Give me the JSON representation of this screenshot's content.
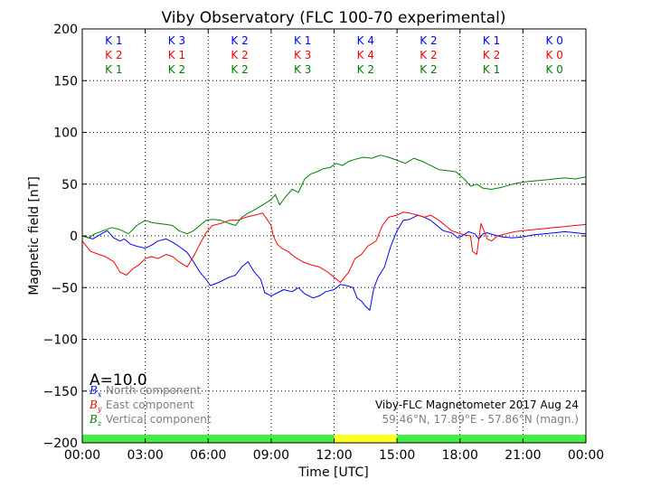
{
  "chart_data": {
    "type": "line",
    "title": "Viby Observatory (FLC 100-70 experimental)",
    "xlabel": "Time [UTC]",
    "ylabel": "Magnetic field [nT]",
    "x_ticks": [
      "00:00",
      "03:00",
      "06:00",
      "09:00",
      "12:00",
      "15:00",
      "18:00",
      "21:00",
      "00:00"
    ],
    "y_ticks": [
      "200",
      "150",
      "100",
      "50",
      "0",
      "−50",
      "−100",
      "−150",
      "−200"
    ],
    "xlim_hours": [
      0,
      24
    ],
    "ylim": [
      -200,
      200
    ],
    "grid": true,
    "k_index_rows": [
      {
        "color": "#0000ff",
        "values": [
          "K 1",
          "K 3",
          "K 2",
          "K 1",
          "K 4",
          "K 2",
          "K 1",
          "K 0"
        ]
      },
      {
        "color": "#ff0000",
        "values": [
          "K 2",
          "K 1",
          "K 2",
          "K 3",
          "K 4",
          "K 2",
          "K 2",
          "K 0"
        ]
      },
      {
        "color": "#008000",
        "values": [
          "K 1",
          "K 2",
          "K 2",
          "K 3",
          "K 2",
          "K 2",
          "K 1",
          "K 0"
        ]
      }
    ],
    "status_bar": [
      {
        "from_hour": 0,
        "to_hour": 12,
        "color": "#44ee44"
      },
      {
        "from_hour": 12,
        "to_hour": 15,
        "color": "#ffff22"
      },
      {
        "from_hour": 15,
        "to_hour": 24,
        "color": "#44ee44"
      }
    ],
    "a_index": "A=10.0",
    "legend": [
      {
        "symbol": "B",
        "subscript": "x",
        "label": "North component",
        "color": "#0000ff"
      },
      {
        "symbol": "B",
        "subscript": "y",
        "label": "East component",
        "color": "#ff0000"
      },
      {
        "symbol": "B",
        "subscript": "z",
        "label": "Vertical component",
        "color": "#008000"
      }
    ],
    "info_line1": "Viby-FLC Magnetometer 2017 Aug 24",
    "info_line2": "59.46°N, 17.89°E - 57.86°N (magn.)",
    "series": [
      {
        "name": "North component",
        "color": "#0000ff",
        "hours": [
          0,
          0.5,
          1.0,
          1.2,
          1.5,
          1.8,
          2.0,
          2.3,
          2.6,
          3.0,
          3.3,
          3.6,
          4.0,
          4.3,
          4.6,
          5.0,
          5.3,
          5.6,
          5.9,
          6.1,
          6.5,
          7.0,
          7.3,
          7.6,
          7.9,
          8.2,
          8.5,
          8.7,
          9.0,
          9.3,
          9.6,
          10.0,
          10.3,
          10.6,
          11.0,
          11.3,
          11.6,
          12.0,
          12.3,
          12.6,
          12.9,
          13.1,
          13.3,
          13.5,
          13.7,
          13.9,
          14.1,
          14.4,
          14.7,
          15.0,
          15.3,
          15.6,
          16.0,
          16.3,
          16.6,
          16.9,
          17.2,
          17.6,
          17.9,
          18.1,
          18.4,
          18.7,
          18.9,
          19.1,
          19.3,
          19.6,
          20.0,
          20.5,
          21.0,
          21.5,
          22.0,
          22.5,
          23.0,
          23.5,
          24.0
        ],
        "values": [
          0,
          -3,
          3,
          5,
          -2,
          -5,
          -3,
          -8,
          -10,
          -12,
          -9,
          -5,
          -3,
          -6,
          -10,
          -16,
          -25,
          -35,
          -42,
          -48,
          -45,
          -40,
          -38,
          -30,
          -25,
          -35,
          -42,
          -55,
          -58,
          -55,
          -52,
          -54,
          -50,
          -56,
          -60,
          -58,
          -54,
          -52,
          -47,
          -48,
          -50,
          -60,
          -63,
          -68,
          -72,
          -50,
          -40,
          -30,
          -10,
          5,
          15,
          16,
          20,
          18,
          15,
          10,
          5,
          3,
          -2,
          0,
          4,
          2,
          -3,
          2,
          3,
          1,
          -1,
          -2,
          -1,
          1,
          2,
          3,
          4,
          3,
          2
        ]
      },
      {
        "name": "East component",
        "color": "#ff0000",
        "hours": [
          0,
          0.4,
          0.8,
          1.1,
          1.5,
          1.8,
          2.1,
          2.4,
          2.7,
          3.0,
          3.3,
          3.6,
          4.0,
          4.3,
          4.6,
          5.0,
          5.3,
          5.6,
          5.9,
          6.2,
          6.6,
          7.0,
          7.4,
          7.8,
          8.2,
          8.6,
          9.0,
          9.1,
          9.3,
          9.5,
          9.8,
          10.1,
          10.5,
          10.9,
          11.3,
          11.7,
          12.0,
          12.3,
          12.7,
          13.0,
          13.3,
          13.6,
          14.0,
          14.3,
          14.6,
          15.0,
          15.3,
          15.6,
          16.0,
          16.3,
          16.6,
          17.0,
          17.3,
          17.6,
          17.9,
          18.2,
          18.5,
          18.6,
          18.8,
          19.0,
          19.3,
          19.5,
          19.8,
          20.2,
          20.6,
          21.0,
          21.5,
          22.0,
          22.5,
          23.0,
          23.5,
          24.0
        ],
        "values": [
          -5,
          -15,
          -18,
          -20,
          -25,
          -35,
          -38,
          -32,
          -28,
          -22,
          -20,
          -22,
          -18,
          -20,
          -25,
          -30,
          -20,
          -8,
          3,
          10,
          12,
          15,
          15,
          18,
          20,
          22,
          10,
          0,
          -8,
          -12,
          -15,
          -20,
          -25,
          -28,
          -30,
          -35,
          -40,
          -45,
          -35,
          -22,
          -18,
          -10,
          -5,
          10,
          18,
          20,
          23,
          22,
          20,
          18,
          20,
          15,
          10,
          5,
          3,
          1,
          0,
          -15,
          -18,
          12,
          -3,
          -5,
          0,
          2,
          4,
          5,
          6,
          7,
          8,
          9,
          10,
          11
        ]
      },
      {
        "name": "Vertical component",
        "color": "#008000",
        "hours": [
          0,
          0.3,
          0.6,
          1.0,
          1.4,
          1.8,
          2.2,
          2.6,
          3.0,
          3.3,
          3.6,
          4.0,
          4.3,
          4.6,
          5.0,
          5.3,
          5.6,
          5.9,
          6.2,
          6.6,
          7.0,
          7.3,
          7.6,
          7.9,
          8.2,
          8.6,
          9.0,
          9.2,
          9.4,
          9.7,
          10.0,
          10.3,
          10.6,
          10.9,
          11.2,
          11.5,
          11.8,
          12.1,
          12.4,
          12.7,
          13.0,
          13.4,
          13.8,
          14.2,
          14.6,
          15.0,
          15.4,
          15.8,
          16.2,
          16.6,
          17.0,
          17.4,
          17.8,
          18.2,
          18.5,
          18.8,
          19.1,
          19.5,
          20.0,
          20.5,
          21.0,
          21.5,
          22.0,
          22.5,
          23.0,
          23.5,
          24.0
        ],
        "values": [
          0,
          -2,
          2,
          5,
          8,
          6,
          2,
          10,
          15,
          13,
          12,
          11,
          10,
          5,
          2,
          5,
          10,
          15,
          16,
          15,
          12,
          10,
          18,
          22,
          25,
          30,
          35,
          40,
          30,
          38,
          45,
          42,
          55,
          60,
          62,
          65,
          66,
          70,
          68,
          72,
          74,
          76,
          75,
          78,
          76,
          73,
          70,
          75,
          72,
          68,
          64,
          63,
          62,
          55,
          48,
          50,
          46,
          45,
          47,
          50,
          52,
          53,
          54,
          55,
          56,
          55,
          57
        ]
      }
    ]
  }
}
